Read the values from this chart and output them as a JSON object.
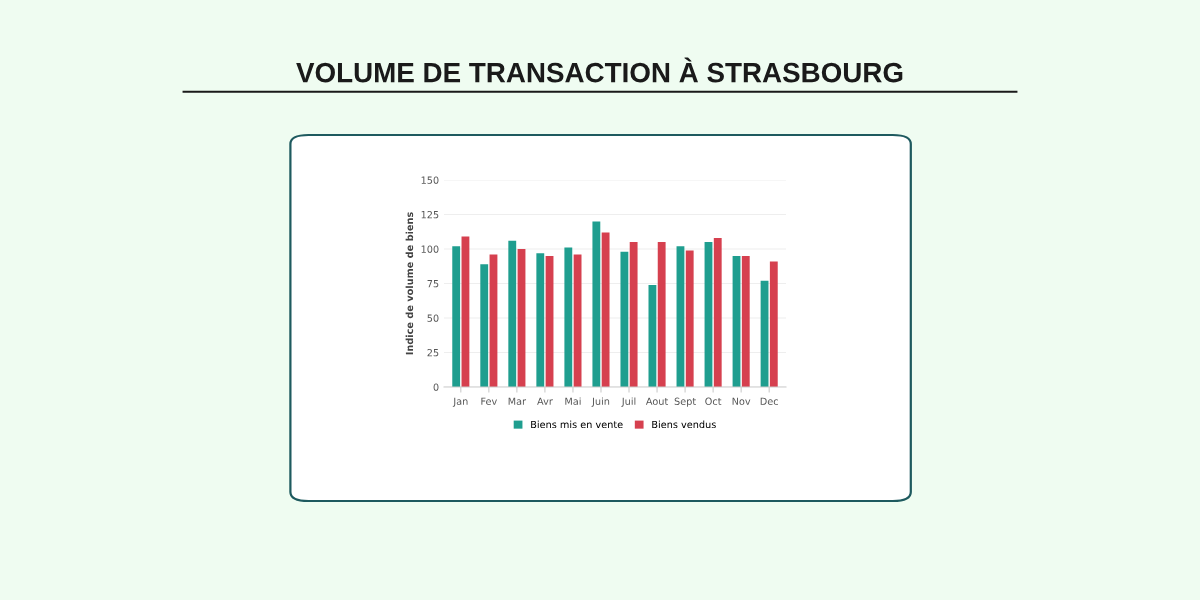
{
  "chart_data": {
    "type": "bar",
    "title": "VOLUME DE TRANSACTION À STRASBOURG",
    "ylabel": "Indice de volume de biens",
    "categories": [
      "Jan",
      "Fev",
      "Mar",
      "Avr",
      "Mai",
      "Juin",
      "Juil",
      "Aout",
      "Sept",
      "Oct",
      "Nov",
      "Dec"
    ],
    "series": [
      {
        "name": "Biens mis en vente",
        "color": "#1f9e8f",
        "values": [
          102,
          89,
          106,
          97,
          101,
          120,
          98,
          74,
          102,
          105,
          95,
          77
        ]
      },
      {
        "name": "Biens vendus",
        "color": "#d6404f",
        "values": [
          109,
          96,
          100,
          95,
          96,
          112,
          105,
          105,
          99,
          108,
          95,
          91
        ]
      }
    ],
    "ylim": [
      0,
      150
    ],
    "yticks": [
      0,
      25,
      50,
      75,
      100,
      125,
      150
    ],
    "grid": "y",
    "legend": "bottom"
  }
}
